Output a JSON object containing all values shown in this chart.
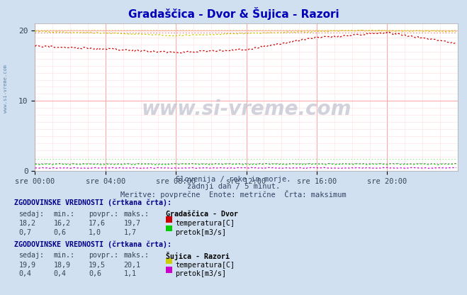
{
  "title": "Gradaščica - Dvor & Šujica - Razori",
  "bg_color": "#d0e0f0",
  "plot_bg_color": "#ffffff",
  "grid_color_major": "#ffaaaa",
  "grid_color_minor": "#ffe0e0",
  "xlim": [
    0,
    288
  ],
  "ylim": [
    0,
    21
  ],
  "yticks": [
    0,
    10,
    20
  ],
  "xtick_labels": [
    "sre 00:00",
    "sre 04:00",
    "sre 08:00",
    "sre 12:00",
    "sre 16:00",
    "sre 20:00"
  ],
  "xtick_positions": [
    0,
    48,
    96,
    144,
    192,
    240
  ],
  "subtitle1": "Slovenija / reke in morje.",
  "subtitle2": "zadnji dan / 5 minut.",
  "subtitle3": "Meritve: povprečne  Enote: metrične  Črta: maksimum",
  "legend1_title": "ZGODOVINSKE VREDNOSTI (črtkana črta):",
  "legend1_cols": [
    "sedaj:",
    "min.:",
    "povpr.:",
    "maks.:"
  ],
  "legend1_row1": [
    "18,2",
    "16,2",
    "17,6",
    "19,7"
  ],
  "legend1_row2": [
    "0,7",
    "0,6",
    "1,0",
    "1,7"
  ],
  "legend1_station": "Gradaščica - Dvor",
  "legend1_label1": "temperatura[C]",
  "legend1_label2": "pretok[m3/s]",
  "legend1_color1": "#cc0000",
  "legend1_color2": "#00cc00",
  "legend2_title": "ZGODOVINSKE VREDNOSTI (črtkana črta):",
  "legend2_cols": [
    "sedaj:",
    "min.:",
    "povpr.:",
    "maks.:"
  ],
  "legend2_row1": [
    "19,9",
    "18,9",
    "19,5",
    "20,1"
  ],
  "legend2_row2": [
    "0,4",
    "0,4",
    "0,6",
    "1,1"
  ],
  "legend2_station": "Šujica - Razori",
  "legend2_label1": "temperatura[C]",
  "legend2_label2": "pretok[m3/s]",
  "legend2_color1": "#cccc00",
  "legend2_color2": "#cc00cc",
  "watermark": "www.si-vreme.com",
  "left_label": "www.si-vreme.com"
}
